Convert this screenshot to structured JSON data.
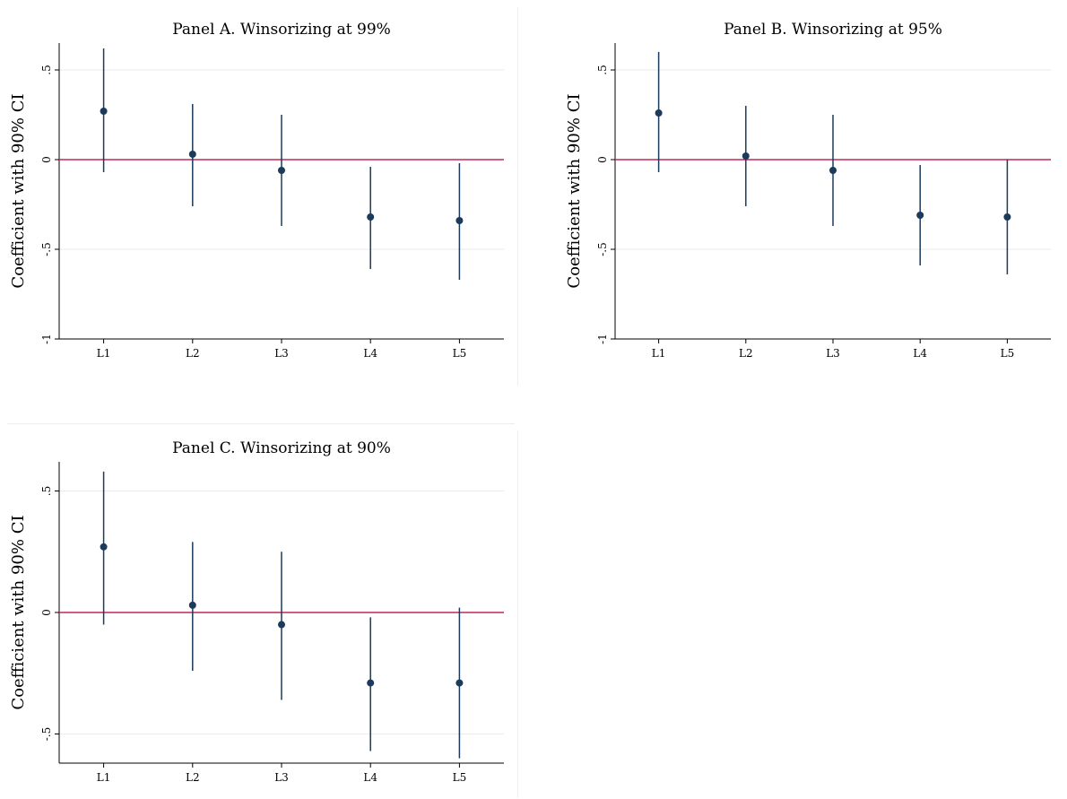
{
  "colors": {
    "marker": "#1b3a5c",
    "reference_line": "#c4265c",
    "grid": "#eaeaea"
  },
  "chart_data": [
    {
      "id": "panel-a",
      "type": "scatter",
      "title": "Panel A. Winsorizing at 99%",
      "xlabel": "",
      "ylabel": "Coefficient with 90% CI",
      "categories": [
        "L1",
        "L2",
        "L3",
        "L4",
        "L5"
      ],
      "values": [
        0.27,
        0.03,
        -0.06,
        -0.32,
        -0.34
      ],
      "ci_low": [
        -0.07,
        -0.26,
        -0.37,
        -0.61,
        -0.67
      ],
      "ci_high": [
        0.62,
        0.31,
        0.25,
        -0.04,
        -0.02
      ],
      "ylim": [
        -1.0,
        0.65
      ],
      "yticks": [
        -1,
        -0.5,
        0,
        0.5
      ],
      "ytick_labels": [
        "-1",
        "-.5",
        "0",
        ".5"
      ],
      "reference_line": 0,
      "grid": true
    },
    {
      "id": "panel-b",
      "type": "scatter",
      "title": "Panel B. Winsorizing at 95%",
      "xlabel": "",
      "ylabel": "Coefficient with 90% CI",
      "categories": [
        "L1",
        "L2",
        "L3",
        "L4",
        "L5"
      ],
      "values": [
        0.26,
        0.02,
        -0.06,
        -0.31,
        -0.32
      ],
      "ci_low": [
        -0.07,
        -0.26,
        -0.37,
        -0.59,
        -0.64
      ],
      "ci_high": [
        0.6,
        0.3,
        0.25,
        -0.03,
        0.0
      ],
      "ylim": [
        -1.0,
        0.65
      ],
      "yticks": [
        -1,
        -0.5,
        0,
        0.5
      ],
      "ytick_labels": [
        "-1",
        "-.5",
        "0",
        ".5"
      ],
      "reference_line": 0,
      "grid": true
    },
    {
      "id": "panel-c",
      "type": "scatter",
      "title": "Panel C. Winsorizing at 90%",
      "xlabel": "",
      "ylabel": "Coefficient with 90% CI",
      "categories": [
        "L1",
        "L2",
        "L3",
        "L4",
        "L5"
      ],
      "values": [
        0.27,
        0.03,
        -0.05,
        -0.29,
        -0.29
      ],
      "ci_low": [
        -0.05,
        -0.24,
        -0.36,
        -0.57,
        -0.6
      ],
      "ci_high": [
        0.58,
        0.29,
        0.25,
        -0.02,
        0.02
      ],
      "ylim": [
        -0.62,
        0.62
      ],
      "yticks": [
        -0.5,
        0,
        0.5
      ],
      "ytick_labels": [
        "-.5",
        "0",
        ".5"
      ],
      "reference_line": 0,
      "grid": true
    }
  ]
}
